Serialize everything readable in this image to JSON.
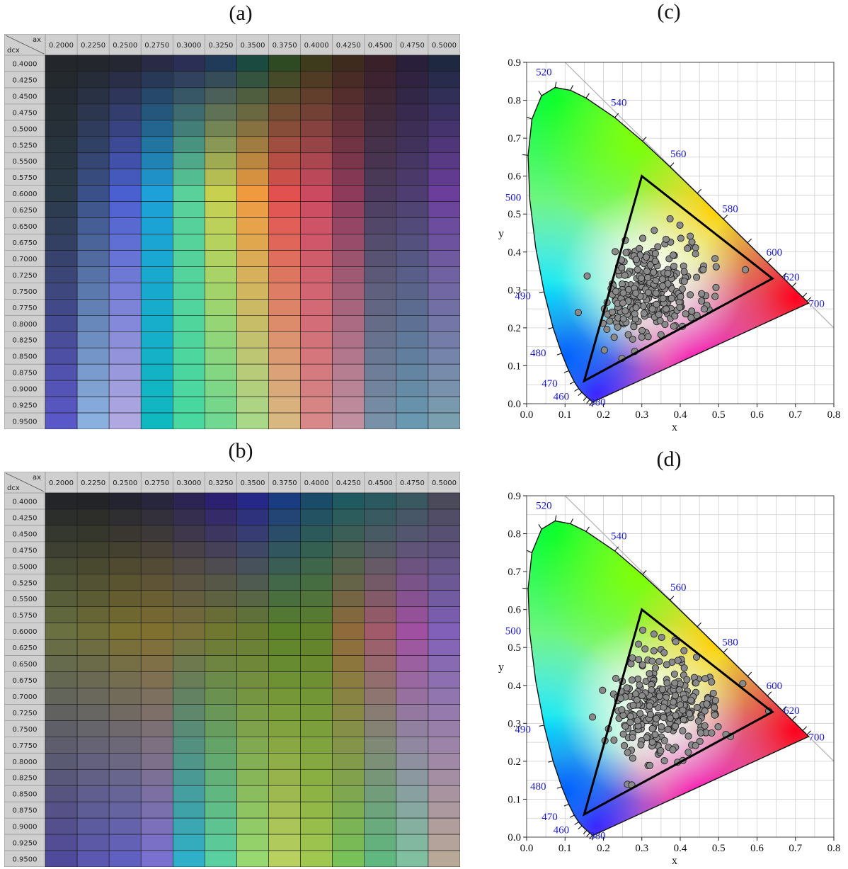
{
  "panels": [
    {
      "id": "a",
      "label": "(a)",
      "kind": "color-grid",
      "row_axis": "dcx",
      "col_axis": "ax",
      "columns": [
        "0.2000",
        "0.2250",
        "0.2500",
        "0.2750",
        "0.3000",
        "0.3250",
        "0.3500",
        "0.3750",
        "0.4000",
        "0.4250",
        "0.4500",
        "0.4750",
        "0.5000"
      ],
      "rows": [
        "0.4000",
        "0.4250",
        "0.4500",
        "0.4750",
        "0.5000",
        "0.5250",
        "0.5500",
        "0.5750",
        "0.6000",
        "0.6250",
        "0.6500",
        "0.6750",
        "0.7000",
        "0.7250",
        "0.7500",
        "0.7750",
        "0.8000",
        "0.8250",
        "0.8500",
        "0.8750",
        "0.9000",
        "0.9250",
        "0.9500"
      ],
      "color_anchors": {
        "top_row": [
          "#23262a",
          "#23272d",
          "#252833",
          "#292a45",
          "#2b2e55",
          "#203a5a",
          "#1a4a40",
          "#2e4a22",
          "#3e3a1c",
          "#3f2a1e",
          "#3a2028",
          "#2a1f3a",
          "#1e2840"
        ],
        "mid_row": [
          "#2a3a48",
          "#3a5088",
          "#4a5fd0",
          "#1ea0d8",
          "#5ad09a",
          "#c8d050",
          "#f09a40",
          "#e25050",
          "#cc4a60",
          "#8e3a5a",
          "#4c3b5e",
          "#4e3d70",
          "#6a3e9a"
        ],
        "bottom_row": [
          "#5a58c8",
          "#8ab0e0",
          "#b0a8e0",
          "#10b8c0",
          "#48d8a0",
          "#70d890",
          "#a8d888",
          "#d8b880",
          "#d88888",
          "#c090a0",
          "#7890a8",
          "#6a98b0",
          "#7aa0b0"
        ]
      }
    },
    {
      "id": "b",
      "label": "(b)",
      "kind": "color-grid",
      "row_axis": "dcx",
      "col_axis": "ax",
      "columns": [
        "0.2000",
        "0.2250",
        "0.2500",
        "0.2750",
        "0.3000",
        "0.3250",
        "0.3500",
        "0.3750",
        "0.4000",
        "0.4250",
        "0.4500",
        "0.4750",
        "0.5000"
      ],
      "rows": [
        "0.4000",
        "0.4250",
        "0.4500",
        "0.4750",
        "0.5000",
        "0.5250",
        "0.5500",
        "0.5750",
        "0.6000",
        "0.6250",
        "0.6500",
        "0.6750",
        "0.7000",
        "0.7250",
        "0.7500",
        "0.7750",
        "0.8000",
        "0.8250",
        "0.8500",
        "0.8750",
        "0.9000",
        "0.9250",
        "0.9500"
      ],
      "color_anchors": {
        "top_row": [
          "#232528",
          "#232428",
          "#242430",
          "#28263c",
          "#2c2452",
          "#2c2070",
          "#262888",
          "#1a3c80",
          "#1a4c6a",
          "#1e5a60",
          "#2a5a60",
          "#3a5860",
          "#4a4a5a"
        ],
        "mid_row": [
          "#6a7040",
          "#6f6e38",
          "#7a7030",
          "#807030",
          "#787038",
          "#707830",
          "#687a30",
          "#5a8028",
          "#60802a",
          "#906a3a",
          "#a05a6a",
          "#a050a0",
          "#8060b8"
        ],
        "bottom_row": [
          "#504a9a",
          "#5a58b0",
          "#6060c0",
          "#7a70d0",
          "#30b0c8",
          "#5ad0a0",
          "#98d870",
          "#b8d060",
          "#a0c850",
          "#78c058",
          "#60b880",
          "#80c0a0",
          "#b8a898"
        ]
      }
    },
    {
      "id": "c",
      "label": "(c)",
      "kind": "cie-chromaticity",
      "xlabel": "x",
      "ylabel": "y",
      "x_ticks": [
        "0.0",
        "0.1",
        "0.2",
        "0.3",
        "0.4",
        "0.5",
        "0.6",
        "0.7",
        "0.8"
      ],
      "y_ticks": [
        "0.0",
        "0.1",
        "0.2",
        "0.3",
        "0.4",
        "0.5",
        "0.6",
        "0.7",
        "0.8",
        "0.9"
      ],
      "wavelength_labels": [
        "380",
        "460",
        "470",
        "480",
        "490",
        "500",
        "520",
        "540",
        "560",
        "580",
        "600",
        "620",
        "700"
      ],
      "triangle": [
        [
          0.64,
          0.33
        ],
        [
          0.3,
          0.6
        ],
        [
          0.15,
          0.06
        ]
      ],
      "points_seed": 11,
      "points_center": [
        0.31,
        0.3
      ],
      "points_count": 300
    },
    {
      "id": "d",
      "label": "(d)",
      "kind": "cie-chromaticity",
      "xlabel": "x",
      "ylabel": "y",
      "x_ticks": [
        "0.0",
        "0.1",
        "0.2",
        "0.3",
        "0.4",
        "0.5",
        "0.6",
        "0.7",
        "0.8"
      ],
      "y_ticks": [
        "0.0",
        "0.1",
        "0.2",
        "0.3",
        "0.4",
        "0.5",
        "0.6",
        "0.7",
        "0.8",
        "0.9"
      ],
      "wavelength_labels": [
        "380",
        "460",
        "470",
        "480",
        "490",
        "500",
        "520",
        "540",
        "560",
        "580",
        "600",
        "620",
        "700"
      ],
      "triangle": [
        [
          0.64,
          0.33
        ],
        [
          0.3,
          0.6
        ],
        [
          0.15,
          0.06
        ]
      ],
      "points_seed": 29,
      "points_center": [
        0.34,
        0.34
      ],
      "points_count": 300
    }
  ],
  "chart_data": [
    {
      "type": "heatmap",
      "title": "(a)",
      "xlabel": "ax",
      "ylabel": "dcx",
      "categories": [
        "0.2000",
        "0.2250",
        "0.2500",
        "0.2750",
        "0.3000",
        "0.3250",
        "0.3500",
        "0.3750",
        "0.4000",
        "0.4250",
        "0.4500",
        "0.4750",
        "0.5000"
      ],
      "rows": [
        "0.4000",
        "0.4250",
        "0.4500",
        "0.4750",
        "0.5000",
        "0.5250",
        "0.5500",
        "0.5750",
        "0.6000",
        "0.6250",
        "0.6500",
        "0.6750",
        "0.7000",
        "0.7250",
        "0.7500",
        "0.7750",
        "0.8000",
        "0.8250",
        "0.8500",
        "0.8750",
        "0.9000",
        "0.9250",
        "0.9500"
      ]
    },
    {
      "type": "heatmap",
      "title": "(b)",
      "xlabel": "ax",
      "ylabel": "dcx",
      "categories": [
        "0.2000",
        "0.2250",
        "0.2500",
        "0.2750",
        "0.3000",
        "0.3250",
        "0.3500",
        "0.3750",
        "0.4000",
        "0.4250",
        "0.4500",
        "0.4750",
        "0.5000"
      ],
      "rows": [
        "0.4000",
        "0.4250",
        "0.4500",
        "0.4750",
        "0.5000",
        "0.5250",
        "0.5500",
        "0.5750",
        "0.6000",
        "0.6250",
        "0.6500",
        "0.6750",
        "0.7000",
        "0.7250",
        "0.7500",
        "0.7750",
        "0.8000",
        "0.8250",
        "0.8500",
        "0.8750",
        "0.9000",
        "0.9250",
        "0.9500"
      ]
    },
    {
      "type": "scatter",
      "title": "(c)",
      "xlabel": "x",
      "ylabel": "y",
      "xlim": [
        0.0,
        0.8
      ],
      "ylim": [
        0.0,
        0.9
      ],
      "grid": true,
      "triangle": [
        [
          0.64,
          0.33
        ],
        [
          0.3,
          0.6
        ],
        [
          0.15,
          0.06
        ]
      ]
    },
    {
      "type": "scatter",
      "title": "(d)",
      "xlabel": "x",
      "ylabel": "y",
      "xlim": [
        0.0,
        0.8
      ],
      "ylim": [
        0.0,
        0.9
      ],
      "grid": true,
      "triangle": [
        [
          0.64,
          0.33
        ],
        [
          0.3,
          0.6
        ],
        [
          0.15,
          0.06
        ]
      ]
    }
  ]
}
